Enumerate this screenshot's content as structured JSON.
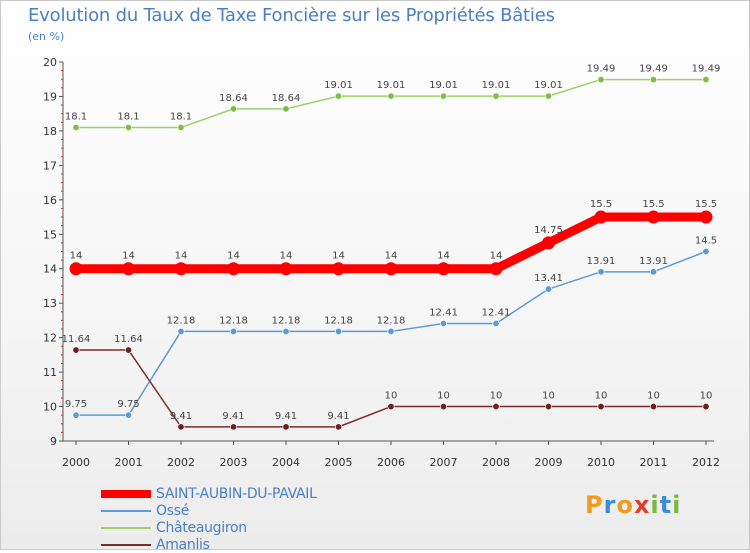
{
  "header": {
    "title": "Evolution du Taux de Taxe Foncière sur les Propriétés Bâties",
    "unit": "(en %)"
  },
  "logo": {
    "letters": [
      "P",
      "r",
      "o",
      "x",
      "i",
      "t",
      "i"
    ],
    "colors": [
      "#f29a1e",
      "#3a8fd6",
      "#f29a1e",
      "#e23d2b",
      "#7bb93a",
      "#3a8fd6",
      "#7bb93a"
    ]
  },
  "chart_data": {
    "type": "line",
    "title": "Evolution du Taux de Taxe Foncière sur les Propriétés Bâties",
    "ylabel": "(en %)",
    "xlabel": "",
    "ylim": [
      9,
      20
    ],
    "yticks": [
      "9",
      "10",
      "11",
      "12",
      "13",
      "14",
      "15",
      "16",
      "17",
      "18",
      "19",
      "20"
    ],
    "categories": [
      "2000",
      "2001",
      "2002",
      "2003",
      "2004",
      "2005",
      "2006",
      "2007",
      "2008",
      "2009",
      "2010",
      "2011",
      "2012"
    ],
    "series": [
      {
        "name": "SAINT-AUBIN-DU-PAVAIL",
        "color": "#ff0000",
        "marker": "#ff0000",
        "width": "thick",
        "values": [
          14,
          14,
          14,
          14,
          14,
          14,
          14,
          14,
          14,
          14.75,
          15.5,
          15.5,
          15.5
        ],
        "labels": [
          "14",
          "14",
          "14",
          "14",
          "14",
          "14",
          "14",
          "14",
          "14",
          "14.75",
          "15.5",
          "15.5",
          "15.5"
        ]
      },
      {
        "name": "Ossé",
        "color": "#5b9bd5",
        "marker": "#5b9bd5",
        "width": "thin",
        "values": [
          9.75,
          9.75,
          12.18,
          12.18,
          12.18,
          12.18,
          12.18,
          12.41,
          12.41,
          13.41,
          13.91,
          13.91,
          14.5
        ],
        "labels": [
          "9.75",
          "9.75",
          "12.18",
          "12.18",
          "12.18",
          "12.18",
          "12.18",
          "12.41",
          "12.41",
          "13.41",
          "13.91",
          "13.91",
          "14.5"
        ]
      },
      {
        "name": "Châteaugiron",
        "color": "#9bd26a",
        "marker": "#7cc042",
        "width": "thin",
        "values": [
          18.1,
          18.1,
          18.1,
          18.64,
          18.64,
          19.01,
          19.01,
          19.01,
          19.01,
          19.01,
          19.49,
          19.49,
          19.49
        ],
        "labels": [
          "18.1",
          "18.1",
          "18.1",
          "18.64",
          "18.64",
          "19.01",
          "19.01",
          "19.01",
          "19.01",
          "19.01",
          "19.49",
          "19.49",
          "19.49"
        ]
      },
      {
        "name": "Amanlis",
        "color": "#7a2d2d",
        "marker": "#6b1f1f",
        "width": "thin",
        "values": [
          11.64,
          11.64,
          9.41,
          9.41,
          9.41,
          9.41,
          10,
          10,
          10,
          10,
          10,
          10,
          10
        ],
        "labels": [
          "11.64",
          "11.64",
          "9.41",
          "9.41",
          "9.41",
          "9.41",
          "10",
          "10",
          "10",
          "10",
          "10",
          "10",
          "10"
        ]
      }
    ],
    "legend_position": "bottom-left",
    "grid": false
  }
}
